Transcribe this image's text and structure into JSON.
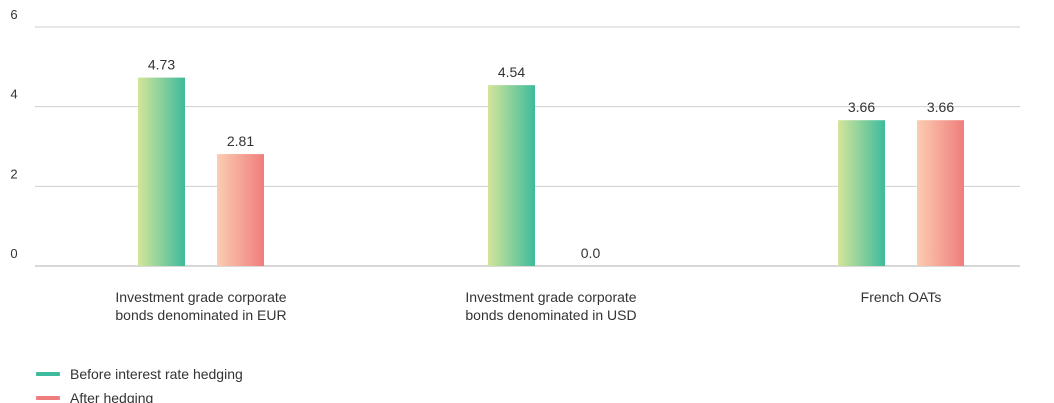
{
  "chart_data": {
    "type": "bar",
    "categories": [
      [
        "Investment grade corporate",
        "bonds denominated in EUR"
      ],
      [
        "Investment grade corporate",
        "bonds denominated in USD"
      ],
      [
        "French OATs"
      ]
    ],
    "series": [
      {
        "name": "Before interest rate hedging",
        "values": [
          4.73,
          4.54,
          3.66
        ],
        "labels": [
          "4.73",
          "4.54",
          "3.66"
        ],
        "color_start": "#d4e59a",
        "color_end": "#3dbb9c"
      },
      {
        "name": "After hedging",
        "values": [
          2.81,
          0.0,
          3.66
        ],
        "labels": [
          "2.81",
          "0.0",
          "3.66"
        ],
        "color_start": "#fbcdb0",
        "color_end": "#f07d7d"
      }
    ],
    "ylim": [
      0,
      6
    ],
    "yticks": [
      0,
      2,
      4,
      6
    ],
    "grid": true,
    "legend_position": "bottom-left",
    "legend_colors": [
      "#3dbb9c",
      "#f07d7d"
    ]
  }
}
